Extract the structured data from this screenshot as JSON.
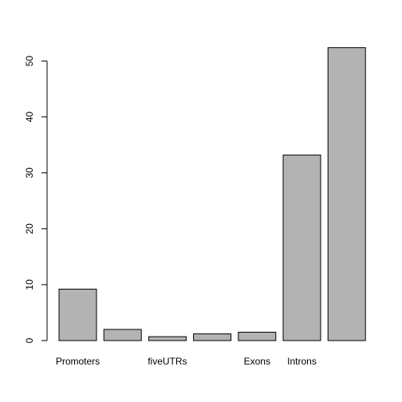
{
  "chart_data": {
    "type": "bar",
    "title": "",
    "xlabel": "",
    "ylabel": "",
    "ylim": [
      0,
      52.5
    ],
    "yticks": [
      0,
      10,
      20,
      30,
      40,
      50
    ],
    "categories": [
      "Promoters",
      "",
      "fiveUTRs",
      "",
      "Exons",
      "Introns",
      ""
    ],
    "values": [
      9.2,
      2.0,
      0.7,
      1.2,
      1.5,
      33.2,
      52.4
    ],
    "grid": false,
    "legend": "none",
    "bar_color": "#b3b3b3"
  }
}
